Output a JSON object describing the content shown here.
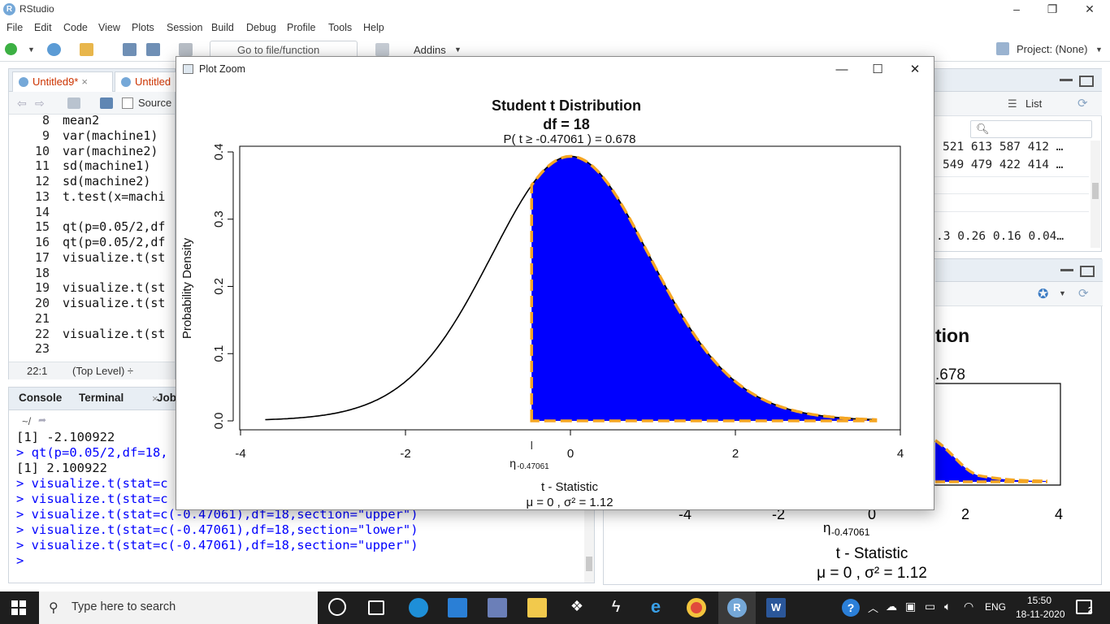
{
  "window": {
    "title": "RStudio",
    "controls": [
      "–",
      "❐",
      "✕"
    ]
  },
  "menu": [
    "File",
    "Edit",
    "Code",
    "View",
    "Plots",
    "Session",
    "Build",
    "Debug",
    "Profile",
    "Tools",
    "Help"
  ],
  "toolbar": {
    "goto_placeholder": "Go to file/function",
    "addins_label": "Addins",
    "project_label": "Project: (None)"
  },
  "source": {
    "tabs": [
      {
        "label": "Untitled9*",
        "close": "×"
      },
      {
        "label": "Untitled",
        "close": ""
      }
    ],
    "source_on_save": "Source",
    "lines": [
      {
        "n": "8",
        "t": "mean2"
      },
      {
        "n": "9",
        "t": "var(machine1)"
      },
      {
        "n": "10",
        "t": "var(machine2)"
      },
      {
        "n": "11",
        "t": "sd(machine1)"
      },
      {
        "n": "12",
        "t": "sd(machine2)"
      },
      {
        "n": "13",
        "t": "t.test(x=machi"
      },
      {
        "n": "14",
        "t": ""
      },
      {
        "n": "15",
        "t": "qt(p=0.05/2,df"
      },
      {
        "n": "16",
        "t": "qt(p=0.05/2,df"
      },
      {
        "n": "17",
        "t": "visualize.t(st"
      },
      {
        "n": "18",
        "t": ""
      },
      {
        "n": "19",
        "t": "visualize.t(st"
      },
      {
        "n": "20",
        "t": "visualize.t(st"
      },
      {
        "n": "21",
        "t": ""
      },
      {
        "n": "22",
        "t": "visualize.t(st"
      },
      {
        "n": "23",
        "t": ""
      }
    ],
    "status_pos": "22:1",
    "status_scope": "(Top Level) ÷"
  },
  "console": {
    "tabs": [
      "Console",
      "Terminal",
      "Jobs"
    ],
    "terminal_close": "×",
    "path": "~/",
    "lines": [
      {
        "kind": "out",
        "text": "[1] -2.100922"
      },
      {
        "kind": "cmd",
        "text": "> qt(p=0.05/2,df=18,"
      },
      {
        "kind": "out",
        "text": "[1] 2.100922"
      },
      {
        "kind": "cmd",
        "text": "> visualize.t(stat=c"
      },
      {
        "kind": "cmd",
        "text": "> visualize.t(stat=c"
      },
      {
        "kind": "cmd",
        "text": "> visualize.t(stat=c(-0.47061),df=18,section=\"upper\")"
      },
      {
        "kind": "cmd",
        "text": "> visualize.t(stat=c(-0.47061),df=18,section=\"lower\")"
      },
      {
        "kind": "cmd",
        "text": "> visualize.t(stat=c(-0.47061),df=18,section=\"upper\")"
      },
      {
        "kind": "cmd",
        "text": "> "
      }
    ]
  },
  "environment": {
    "view_mode": "List",
    "rows": [
      "521 613 587 412 …",
      "549 479 422 414 …",
      ".3 0.26 0.16 0.04…"
    ]
  },
  "plot_pane": {
    "title_fragment": "tion",
    "prob_fragment": ".678",
    "x_ticks": [
      "-4",
      "-2",
      "0",
      "2",
      "4"
    ],
    "stat_label": "η",
    "stat_sub": "-0.47061",
    "xlabel": "t - Statistic",
    "params": "μ =  0 , σ² =  1.12"
  },
  "plot_zoom": {
    "window_title": "Plot Zoom",
    "controls": [
      "—",
      "☐",
      "✕"
    ]
  },
  "chart_data": {
    "type": "area",
    "title": "Student t Distribution",
    "subtitle": "df  =  18",
    "prob_text": "P( t ≥  -0.47061  ) = 0.678",
    "xlabel": "t - Statistic",
    "ylabel": "Probability Density",
    "params_text": "μ =  0 , σ² =  1.12",
    "stat_label": "η",
    "stat_sub": "-0.47061",
    "df": 18,
    "stat": -0.47061,
    "section": "upper",
    "xlim": [
      -4,
      4
    ],
    "ylim": [
      0,
      0.4
    ],
    "x_ticks": [
      -4,
      -2,
      0,
      2,
      4
    ],
    "y_ticks": [
      0.0,
      0.1,
      0.2,
      0.3,
      0.4
    ],
    "y_tick_labels": [
      "0.0",
      "0.1",
      "0.2",
      "0.3",
      "0.4"
    ],
    "curve_range": [
      -3.7,
      3.7
    ],
    "fill_color": "#0000ff",
    "border_color": "#f5a623",
    "curve_color": "#000000"
  },
  "taskbar": {
    "search_placeholder": "Type here to search",
    "lang": "ENG",
    "time": "15:50",
    "date": "18-11-2020",
    "notification_count": "2"
  }
}
